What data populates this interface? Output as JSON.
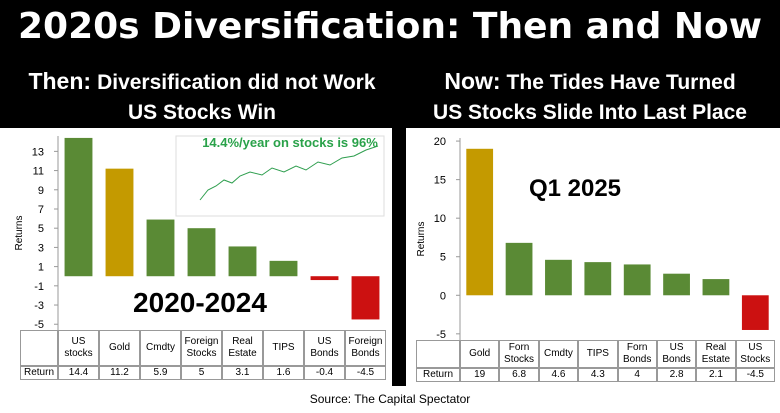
{
  "title": "2020s Diversification: Then and Now",
  "source": "Source: The Capital Spectator",
  "chart_data": [
    {
      "type": "bar",
      "title_lead": "Then:",
      "title": "Diversification did not Work",
      "subtitle": "US Stocks Win",
      "annotation": "2020-2024",
      "inset_caption": "14.4%/year on stocks is 96%",
      "y_label": "Returns",
      "row_label": "Return",
      "categories": [
        "US stocks",
        "Gold",
        "Cmdty",
        "Foreign Stocks",
        "Real Estate",
        "TIPS",
        "US Bonds",
        "Foreign Bonds"
      ],
      "values": [
        14.4,
        11.2,
        5.9,
        5,
        3.1,
        1.6,
        -0.4,
        -4.5
      ],
      "colors": [
        "#5a8a35",
        "#c49a00",
        "#5a8a35",
        "#5a8a35",
        "#5a8a35",
        "#5a8a35",
        "#cc1111",
        "#cc1111"
      ],
      "ylim": [
        -5.6,
        14.6
      ],
      "yticks": [
        -5,
        -3,
        -1,
        1,
        3,
        5,
        7,
        9,
        11,
        13
      ]
    },
    {
      "type": "bar",
      "title_lead": "Now:",
      "title": "The Tides Have Turned",
      "subtitle": "US Stocks Slide Into Last Place",
      "annotation": "Q1 2025",
      "y_label": "Returns",
      "row_label": "Return",
      "categories": [
        "Gold",
        "Forn Stocks",
        "Cmdty",
        "TIPS",
        "Forn Bonds",
        "US Bonds",
        "Real Estate",
        "US Stocks"
      ],
      "values": [
        19,
        6.8,
        4.6,
        4.3,
        4,
        2.8,
        2.1,
        -4.5
      ],
      "colors": [
        "#c49a00",
        "#5a8a35",
        "#5a8a35",
        "#5a8a35",
        "#5a8a35",
        "#5a8a35",
        "#5a8a35",
        "#cc1111"
      ],
      "ylim": [
        -5.8,
        20.4
      ],
      "yticks": [
        -5,
        0,
        5,
        10,
        15,
        20
      ]
    }
  ]
}
